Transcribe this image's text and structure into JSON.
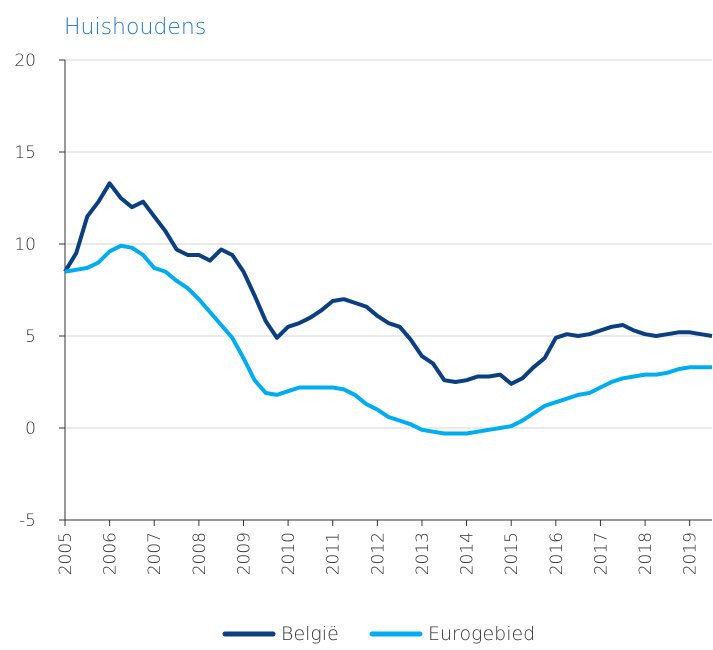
{
  "chart_data": {
    "type": "line",
    "title": "Huishoudens",
    "x": [
      2005.0,
      2005.25,
      2005.5,
      2005.75,
      2006.0,
      2006.25,
      2006.5,
      2006.75,
      2007.0,
      2007.25,
      2007.5,
      2007.75,
      2008.0,
      2008.25,
      2008.5,
      2008.75,
      2009.0,
      2009.25,
      2009.5,
      2009.75,
      2010.0,
      2010.25,
      2010.5,
      2010.75,
      2011.0,
      2011.25,
      2011.5,
      2011.75,
      2012.0,
      2012.25,
      2012.5,
      2012.75,
      2013.0,
      2013.25,
      2013.5,
      2013.75,
      2014.0,
      2014.25,
      2014.5,
      2014.75,
      2015.0,
      2015.25,
      2015.5,
      2015.75,
      2016.0,
      2016.25,
      2016.5,
      2016.75,
      2017.0,
      2017.25,
      2017.5,
      2017.75,
      2018.0,
      2018.25,
      2018.5,
      2018.75,
      2019.0,
      2019.25,
      2019.5
    ],
    "series": [
      {
        "name": "België",
        "color": "#0b3f7f",
        "values": [
          8.5,
          9.5,
          11.5,
          12.3,
          13.3,
          12.5,
          12.0,
          12.3,
          11.5,
          10.7,
          9.7,
          9.4,
          9.4,
          9.1,
          9.7,
          9.4,
          8.5,
          7.2,
          5.8,
          4.9,
          5.5,
          5.7,
          6.0,
          6.4,
          6.9,
          7.0,
          6.8,
          6.6,
          6.1,
          5.7,
          5.5,
          4.8,
          3.9,
          3.5,
          2.6,
          2.5,
          2.6,
          2.8,
          2.8,
          2.9,
          2.4,
          2.7,
          3.3,
          3.8,
          4.9,
          5.1,
          5.0,
          5.1,
          5.3,
          5.5,
          5.6,
          5.3,
          5.1,
          5.0,
          5.1,
          5.2,
          5.2,
          5.1,
          5.0
        ]
      },
      {
        "name": "Eurogebied",
        "color": "#00aeef",
        "values": [
          8.5,
          8.6,
          8.7,
          9.0,
          9.6,
          9.9,
          9.8,
          9.4,
          8.7,
          8.5,
          8.0,
          7.6,
          7.0,
          6.3,
          5.6,
          4.9,
          3.8,
          2.6,
          1.9,
          1.8,
          2.0,
          2.2,
          2.2,
          2.2,
          2.2,
          2.1,
          1.8,
          1.3,
          1.0,
          0.6,
          0.4,
          0.2,
          -0.1,
          -0.2,
          -0.3,
          -0.3,
          -0.3,
          -0.2,
          -0.1,
          0.0,
          0.1,
          0.4,
          0.8,
          1.2,
          1.4,
          1.6,
          1.8,
          1.9,
          2.2,
          2.5,
          2.7,
          2.8,
          2.9,
          2.9,
          3.0,
          3.2,
          3.3,
          3.3,
          3.3
        ]
      }
    ],
    "xlim": [
      2005,
      2019.5
    ],
    "xticks": [
      2005,
      2006,
      2007,
      2008,
      2009,
      2010,
      2011,
      2012,
      2013,
      2014,
      2015,
      2016,
      2017,
      2018,
      2019
    ],
    "ylim": [
      -5,
      20
    ],
    "yticks": [
      -5,
      0,
      5,
      10,
      15,
      20
    ],
    "grid": true,
    "legend": "bottom"
  }
}
